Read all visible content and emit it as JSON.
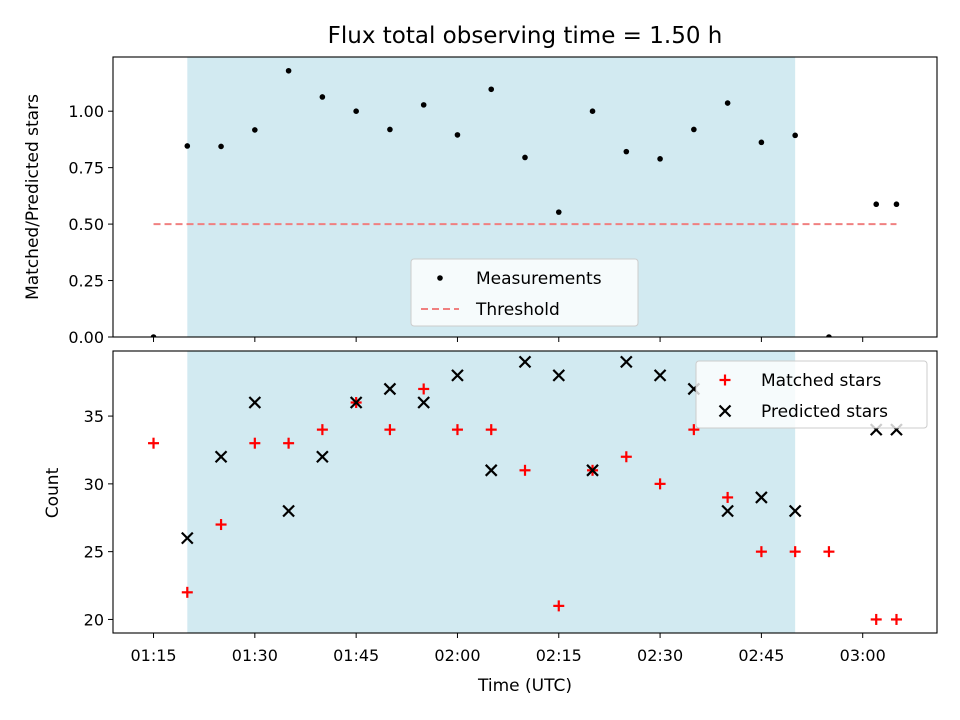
{
  "chart_data": [
    {
      "type": "scatter",
      "title": "Flux total observing time = 1.50 h",
      "xlabel": "",
      "ylabel": "Matched/Predicted stars",
      "ylim": [
        0,
        1.24
      ],
      "yticks": [
        "0.00",
        "0.25",
        "0.50",
        "0.75",
        "1.00"
      ],
      "highlight_span": {
        "start": "01:20",
        "end": "02:50",
        "color": "#add8e6"
      },
      "legend_position": "lower-center",
      "series": [
        {
          "name": "Measurements",
          "marker": "dot",
          "color": "#000000",
          "points": [
            {
              "x": "01:15",
              "y": 0.0
            },
            {
              "x": "01:20",
              "y": 0.846
            },
            {
              "x": "01:25",
              "y": 0.844
            },
            {
              "x": "01:30",
              "y": 0.917
            },
            {
              "x": "01:35",
              "y": 1.179
            },
            {
              "x": "01:40",
              "y": 1.063
            },
            {
              "x": "01:45",
              "y": 1.0
            },
            {
              "x": "01:50",
              "y": 0.919
            },
            {
              "x": "01:55",
              "y": 1.028
            },
            {
              "x": "02:00",
              "y": 0.895
            },
            {
              "x": "02:05",
              "y": 1.097
            },
            {
              "x": "02:10",
              "y": 0.795
            },
            {
              "x": "02:15",
              "y": 0.553
            },
            {
              "x": "02:20",
              "y": 1.0
            },
            {
              "x": "02:25",
              "y": 0.821
            },
            {
              "x": "02:30",
              "y": 0.789
            },
            {
              "x": "02:35",
              "y": 0.919
            },
            {
              "x": "02:40",
              "y": 1.036
            },
            {
              "x": "02:45",
              "y": 0.862
            },
            {
              "x": "02:50",
              "y": 0.893
            },
            {
              "x": "02:55",
              "y": 0.0
            },
            {
              "x": "03:02",
              "y": 0.588
            },
            {
              "x": "03:05",
              "y": 0.588
            }
          ]
        },
        {
          "name": "Threshold",
          "line": "dashed",
          "color": "#f08080",
          "points": [
            {
              "x": "01:15",
              "y": 0.5
            },
            {
              "x": "03:05",
              "y": 0.5
            }
          ]
        }
      ]
    },
    {
      "type": "scatter",
      "title": "",
      "xlabel": "Time (UTC)",
      "ylabel": "Count",
      "ylim": [
        19,
        39.8
      ],
      "yticks": [
        "20",
        "25",
        "30",
        "35"
      ],
      "xticks": [
        "01:15",
        "01:30",
        "01:45",
        "02:00",
        "02:15",
        "02:30",
        "02:45",
        "03:00"
      ],
      "xlim": [
        "01:09",
        "03:11"
      ],
      "highlight_span": {
        "start": "01:20",
        "end": "02:50",
        "color": "#add8e6"
      },
      "legend_position": "upper-right",
      "series": [
        {
          "name": "Matched stars",
          "marker": "plus",
          "color": "#ff0000",
          "points": [
            {
              "x": "01:15",
              "y": 33
            },
            {
              "x": "01:20",
              "y": 22
            },
            {
              "x": "01:25",
              "y": 27
            },
            {
              "x": "01:30",
              "y": 33
            },
            {
              "x": "01:35",
              "y": 33
            },
            {
              "x": "01:40",
              "y": 34
            },
            {
              "x": "01:45",
              "y": 36
            },
            {
              "x": "01:50",
              "y": 34
            },
            {
              "x": "01:55",
              "y": 37
            },
            {
              "x": "02:00",
              "y": 34
            },
            {
              "x": "02:05",
              "y": 34
            },
            {
              "x": "02:10",
              "y": 31
            },
            {
              "x": "02:15",
              "y": 21
            },
            {
              "x": "02:20",
              "y": 31
            },
            {
              "x": "02:25",
              "y": 32
            },
            {
              "x": "02:30",
              "y": 30
            },
            {
              "x": "02:35",
              "y": 34
            },
            {
              "x": "02:40",
              "y": 29
            },
            {
              "x": "02:45",
              "y": 25
            },
            {
              "x": "02:50",
              "y": 25
            },
            {
              "x": "02:55",
              "y": 25
            },
            {
              "x": "03:02",
              "y": 20
            },
            {
              "x": "03:05",
              "y": 20
            }
          ]
        },
        {
          "name": "Predicted stars",
          "marker": "x",
          "color": "#000000",
          "points": [
            {
              "x": "01:20",
              "y": 26
            },
            {
              "x": "01:25",
              "y": 32
            },
            {
              "x": "01:30",
              "y": 36
            },
            {
              "x": "01:35",
              "y": 28
            },
            {
              "x": "01:40",
              "y": 32
            },
            {
              "x": "01:45",
              "y": 36
            },
            {
              "x": "01:50",
              "y": 37
            },
            {
              "x": "01:55",
              "y": 36
            },
            {
              "x": "02:00",
              "y": 38
            },
            {
              "x": "02:05",
              "y": 31
            },
            {
              "x": "02:10",
              "y": 39
            },
            {
              "x": "02:15",
              "y": 38
            },
            {
              "x": "02:20",
              "y": 31
            },
            {
              "x": "02:25",
              "y": 39
            },
            {
              "x": "02:30",
              "y": 38
            },
            {
              "x": "02:35",
              "y": 37
            },
            {
              "x": "02:40",
              "y": 28
            },
            {
              "x": "02:45",
              "y": 29
            },
            {
              "x": "02:50",
              "y": 28
            },
            {
              "x": "03:02",
              "y": 34
            },
            {
              "x": "03:05",
              "y": 34
            }
          ]
        }
      ]
    }
  ]
}
